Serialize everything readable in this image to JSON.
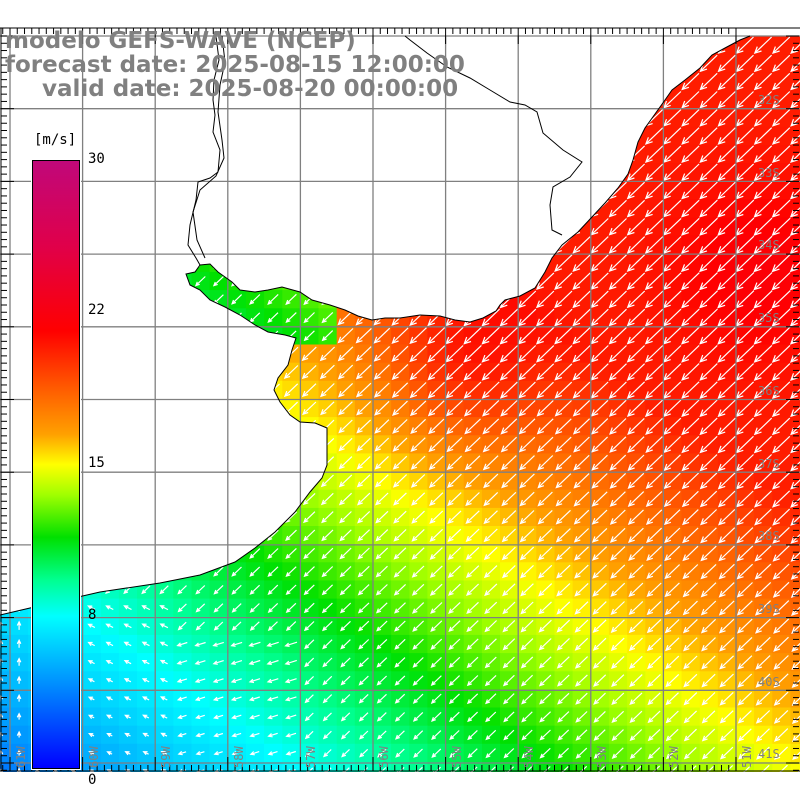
{
  "header": {
    "line1": "modelo GEFS-WAVE (NCEP)",
    "line2": "forecast date: 2025-08-15 12:00:00",
    "line3": "valid date: 2025-08-20 00:00:00"
  },
  "colorbar": {
    "unit": "[m/s]",
    "ticks": [
      "30",
      "22",
      "15",
      "8",
      "0"
    ]
  },
  "lat_labels": [
    "32S",
    "33S",
    "34S",
    "35S",
    "36S",
    "37S",
    "38S",
    "39S",
    "40S",
    "41S"
  ],
  "lon_labels": [
    "61W",
    "60W",
    "59W",
    "58W",
    "57W",
    "56W",
    "55W",
    "54W",
    "53W",
    "52W",
    "51W"
  ],
  "colors": {
    "grid": "#808080",
    "coast": "#000000",
    "arrow": "#ffffff",
    "title": "#808080"
  }
}
